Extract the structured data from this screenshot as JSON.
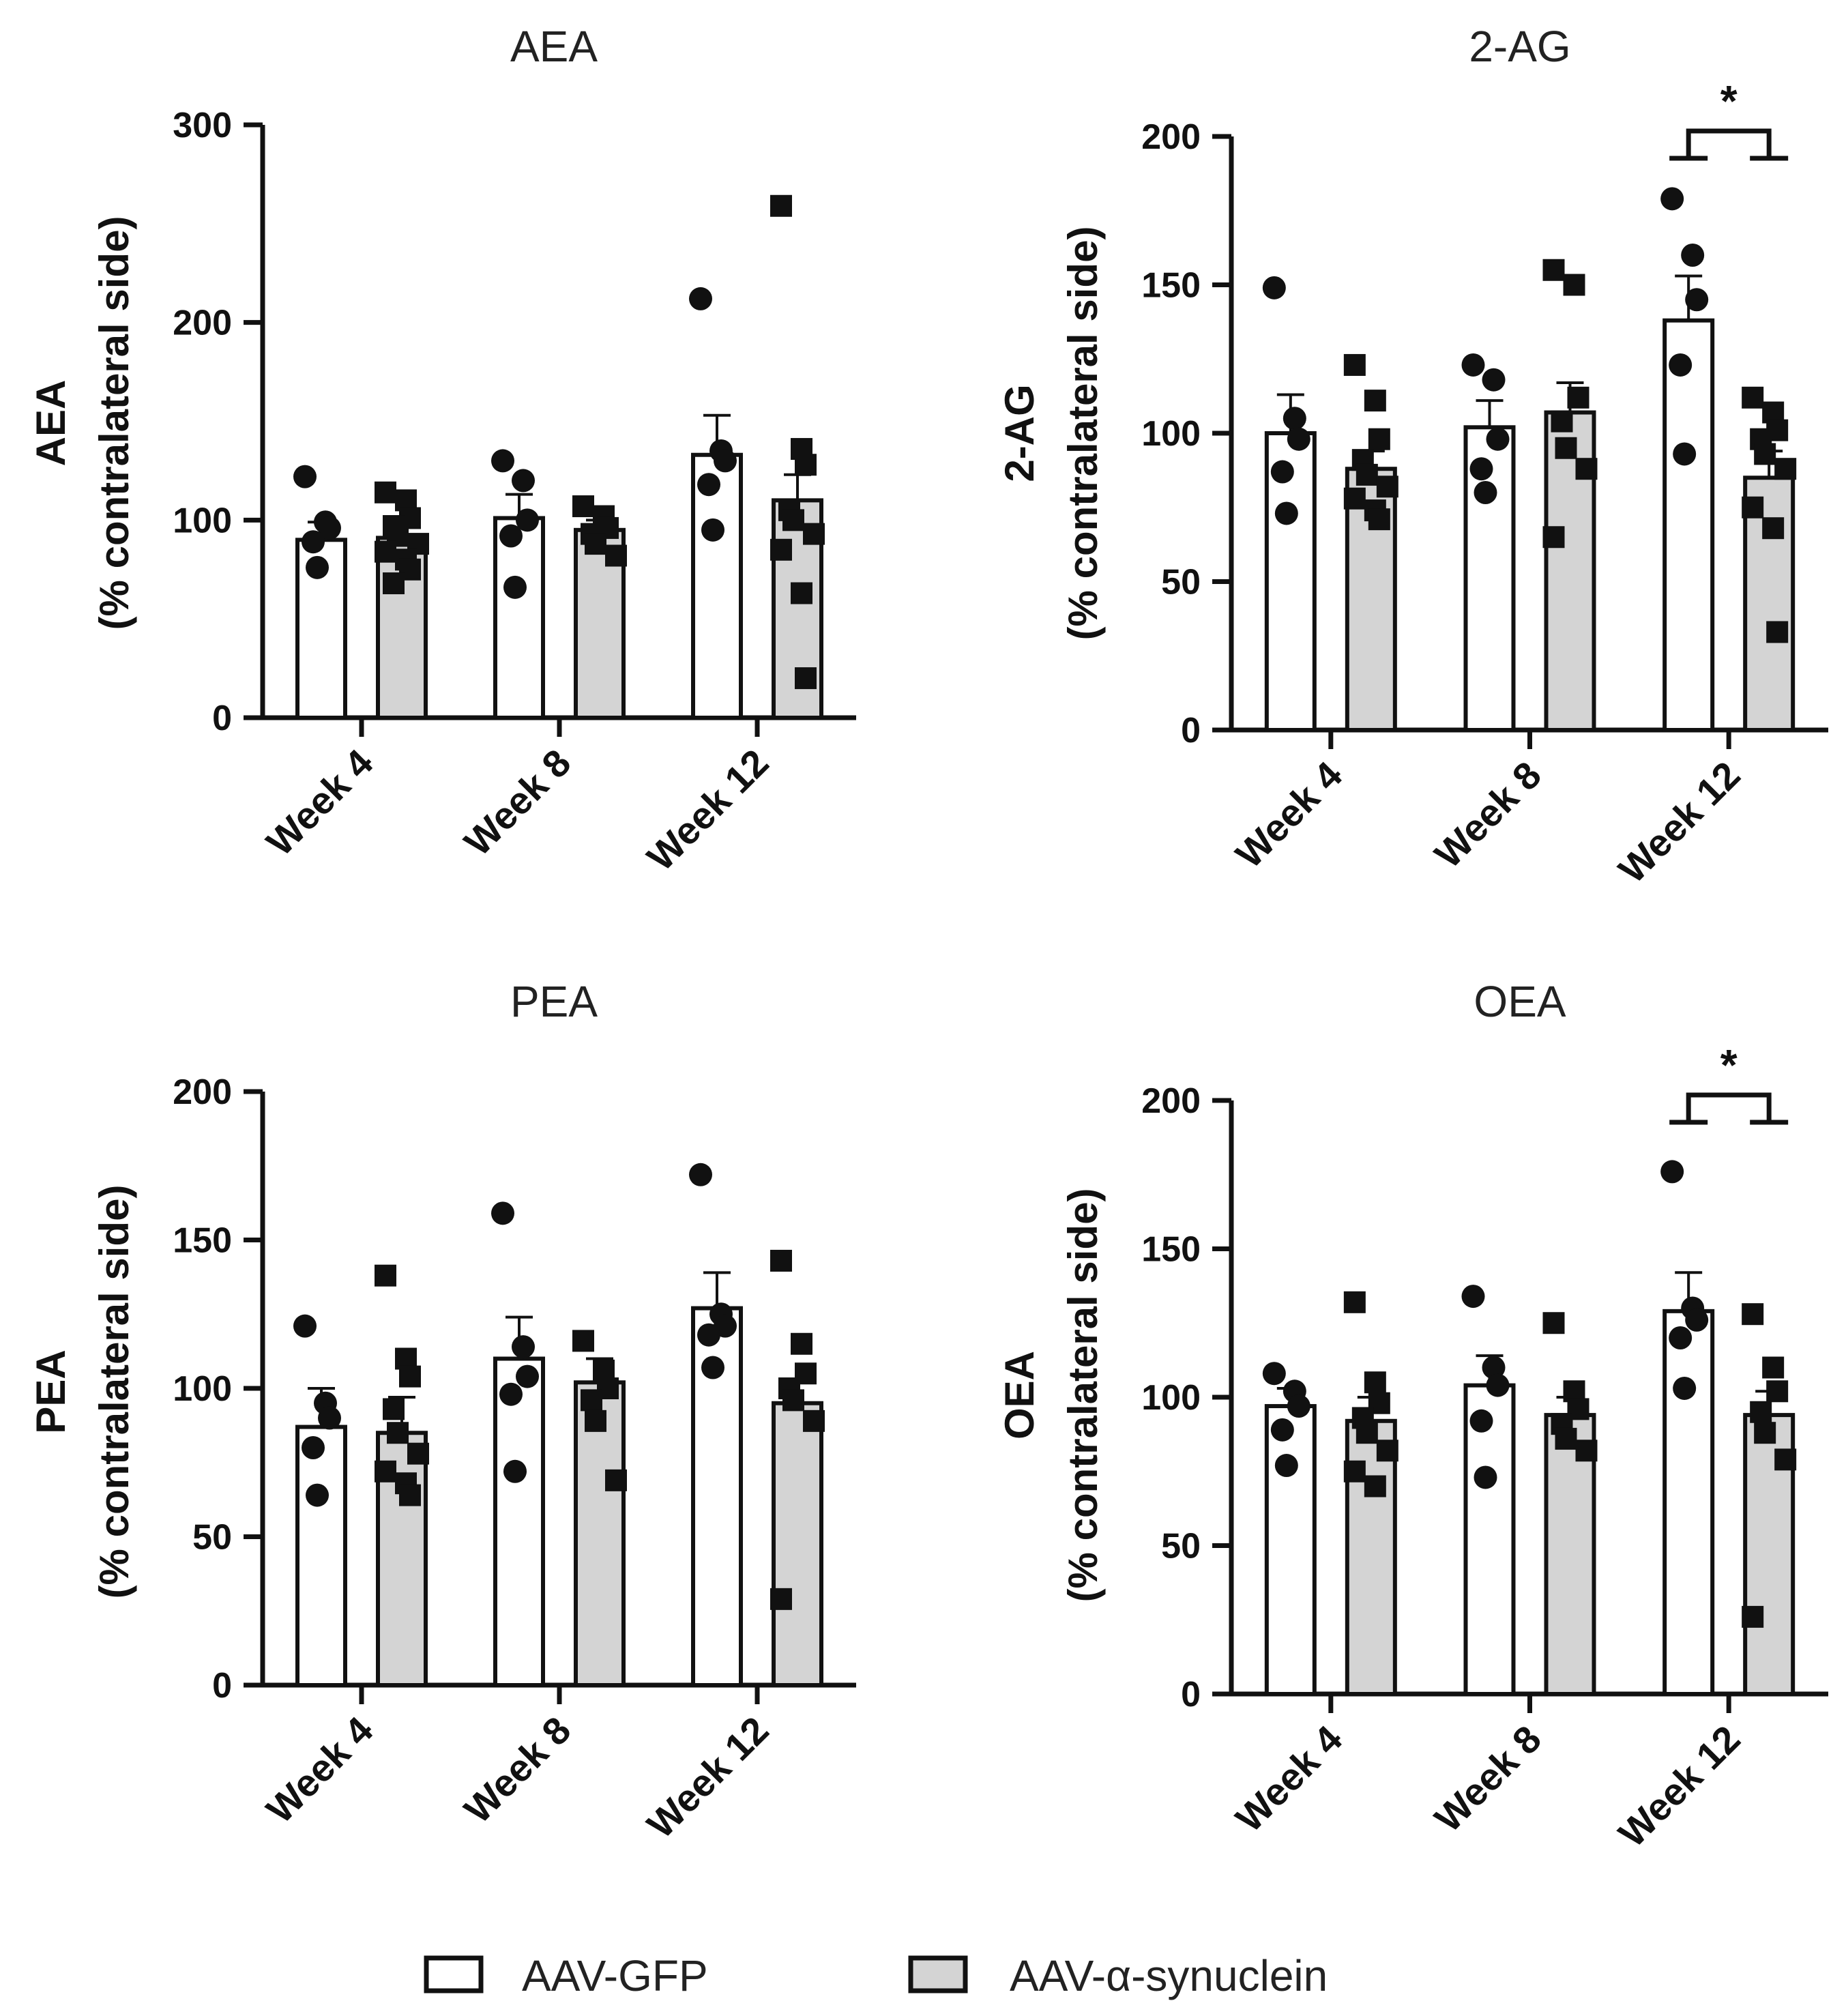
{
  "legend": {
    "items": [
      {
        "label": "AAV-GFP",
        "color": "#ffffff"
      },
      {
        "label": "AAV-α-synuclein",
        "color": "#d4d4d4"
      }
    ]
  },
  "chart_data": [
    {
      "type": "bar",
      "title": "AEA",
      "ylabel": "AEA",
      "ylabel2": "(% contralateral side)",
      "ylim": [
        0,
        300
      ],
      "yticks": [
        0,
        100,
        200,
        300
      ],
      "categories": [
        "Week 4",
        "Week 8",
        "Week 12"
      ],
      "series": [
        {
          "name": "AAV-GFP",
          "marker": "circle",
          "values": [
            90,
            101,
            133
          ],
          "sem": [
            9,
            12,
            20
          ],
          "points": [
            [
              122,
              99,
              96,
              89,
              76
            ],
            [
              130,
              120,
              100,
              92,
              66
            ],
            [
              212,
              135,
              130,
              118,
              95
            ]
          ]
        },
        {
          "name": "AAV-α-synuclein",
          "marker": "square",
          "values": [
            91,
            95,
            110
          ],
          "sem": [
            6,
            5,
            13
          ],
          "points": [
            [
              114,
              110,
              101,
              97,
              92,
              88,
              84,
              80,
              75,
              68
            ],
            [
              107,
              102,
              96,
              93,
              88,
              82
            ],
            [
              259,
              136,
              128,
              105,
              100,
              93,
              85,
              63,
              20
            ]
          ]
        }
      ],
      "significance": []
    },
    {
      "type": "bar",
      "title": "2-AG",
      "ylabel": "2-AG",
      "ylabel2": "(% contralateral side)",
      "ylim": [
        0,
        200
      ],
      "yticks": [
        0,
        50,
        100,
        150,
        200
      ],
      "categories": [
        "Week 4",
        "Week 8",
        "Week 12"
      ],
      "series": [
        {
          "name": "AAV-GFP",
          "marker": "circle",
          "values": [
            100,
            102,
            138
          ],
          "sem": [
            13,
            9,
            15
          ],
          "points": [
            [
              149,
              105,
              98,
              87,
              73
            ],
            [
              123,
              118,
              98,
              88,
              80
            ],
            [
              179,
              160,
              145,
              123,
              93
            ]
          ]
        },
        {
          "name": "AAV-α-synuclein",
          "marker": "square",
          "values": [
            88,
            107,
            85
          ],
          "sem": [
            6,
            10,
            9
          ],
          "points": [
            [
              123,
              111,
              98,
              91,
              86,
              82,
              78,
              74,
              71
            ],
            [
              155,
              150,
              112,
              104,
              95,
              88,
              65
            ],
            [
              112,
              107,
              101,
              98,
              93,
              88,
              75,
              68,
              33
            ]
          ]
        }
      ],
      "significance": [
        {
          "label": "*",
          "category": "Week 12"
        }
      ]
    },
    {
      "type": "bar",
      "title": "PEA",
      "ylabel": "PEA",
      "ylabel2": "(% contralateral side)",
      "ylim": [
        0,
        200
      ],
      "yticks": [
        0,
        50,
        100,
        150,
        200
      ],
      "categories": [
        "Week 4",
        "Week 8",
        "Week 12"
      ],
      "series": [
        {
          "name": "AAV-GFP",
          "marker": "circle",
          "values": [
            87,
            110,
            127
          ],
          "sem": [
            13,
            14,
            12
          ],
          "points": [
            [
              121,
              95,
              90,
              80,
              64
            ],
            [
              159,
              114,
              104,
              98,
              72
            ],
            [
              172,
              125,
              121,
              118,
              107
            ]
          ]
        },
        {
          "name": "AAV-α-synuclein",
          "marker": "square",
          "values": [
            85,
            102,
            95
          ],
          "sem": [
            12,
            8,
            8
          ],
          "points": [
            [
              138,
              110,
              104,
              93,
              85,
              78,
              72,
              68,
              64
            ],
            [
              116,
              106,
              100,
              96,
              89,
              69
            ],
            [
              143,
              115,
              105,
              100,
              96,
              89,
              29
            ]
          ]
        }
      ],
      "significance": []
    },
    {
      "type": "bar",
      "title": "OEA",
      "ylabel": "OEA",
      "ylabel2": "(% contralateral side)",
      "ylim": [
        0,
        200
      ],
      "yticks": [
        0,
        50,
        100,
        150,
        200
      ],
      "categories": [
        "Week 4",
        "Week 8",
        "Week 12"
      ],
      "series": [
        {
          "name": "AAV-GFP",
          "marker": "circle",
          "values": [
            97,
            104,
            129
          ],
          "sem": [
            6,
            10,
            13
          ],
          "points": [
            [
              108,
              102,
              97,
              89,
              77
            ],
            [
              134,
              110,
              104,
              92,
              73
            ],
            [
              176,
              130,
              126,
              120,
              103
            ]
          ]
        },
        {
          "name": "AAV-α-synuclein",
          "marker": "square",
          "values": [
            92,
            94,
            94
          ],
          "sem": [
            8,
            6,
            8
          ],
          "points": [
            [
              132,
              105,
              98,
              93,
              88,
              82,
              75,
              70
            ],
            [
              125,
              102,
              96,
              91,
              86,
              82
            ],
            [
              128,
              110,
              102,
              95,
              88,
              79,
              26
            ]
          ]
        }
      ],
      "significance": [
        {
          "label": "*",
          "category": "Week 12"
        }
      ]
    }
  ]
}
